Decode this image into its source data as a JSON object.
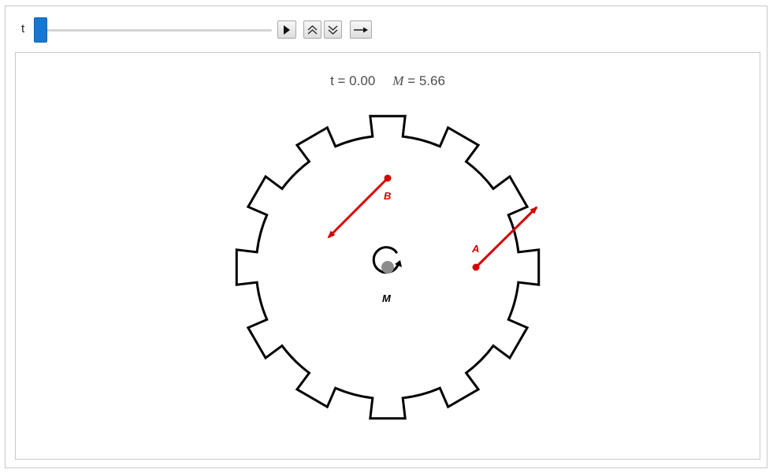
{
  "control": {
    "param_label": "t",
    "slider_value": 0.0,
    "play_icon": "play-icon",
    "faster_icon": "double-chevron-up-icon",
    "slower_icon": "double-chevron-down-icon",
    "direction_icon": "right-arrow-icon"
  },
  "readout": {
    "t_label": "t",
    "t_eq": "= 0.00",
    "m_label": "M",
    "m_eq": "= 5.66"
  },
  "diagram": {
    "label_B": "B",
    "label_A": "A",
    "label_M": "M",
    "teeth": 12,
    "vector_color": "#d40000",
    "gear_color": "#000000",
    "hub_color": "#8c8c8c"
  }
}
